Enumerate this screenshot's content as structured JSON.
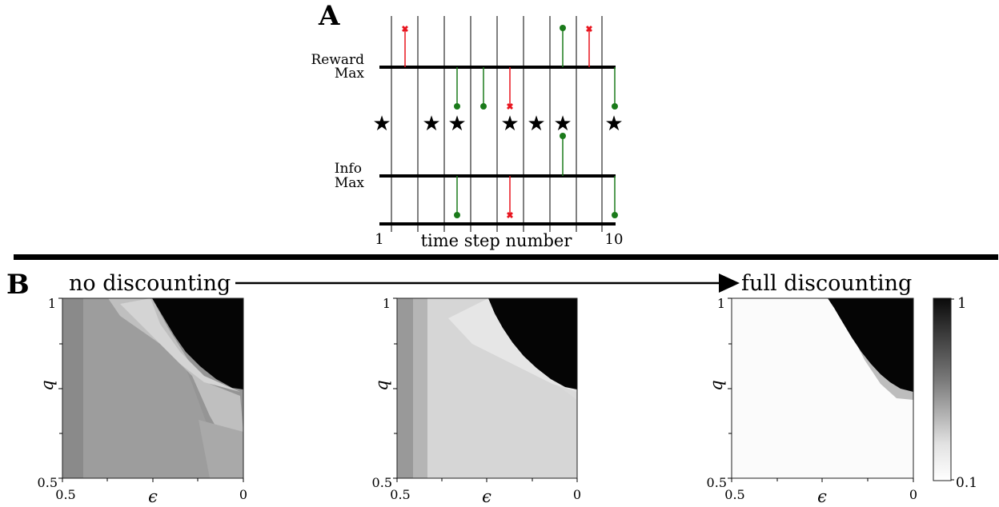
{
  "panel_a": {
    "letter": "A",
    "rows": [
      {
        "label_line1": "Reward",
        "label_line2": "Max"
      },
      {
        "label_line1": "Info",
        "label_line2": "Max"
      }
    ],
    "x_start_label": "1",
    "x_end_label": "10",
    "x_title": "time step number",
    "star_symbol": "★",
    "colors": {
      "green": "#1a7a1a",
      "red": "#e8141e"
    }
  },
  "panel_b": {
    "letter": "B",
    "arrow_left_text": "no discounting",
    "arrow_right_text": "full discounting",
    "heatmaps": [
      {
        "id": "no-discounting"
      },
      {
        "id": "intermediate-discounting"
      },
      {
        "id": "full-discounting"
      }
    ],
    "y_axis": {
      "label": "q",
      "ticks": [
        "1",
        "0.5"
      ]
    },
    "x_axis": {
      "label": "ϵ",
      "ticks": [
        "0.5",
        "0"
      ]
    },
    "colorbar": {
      "max_label": "1",
      "min_label": "0.1"
    }
  }
}
